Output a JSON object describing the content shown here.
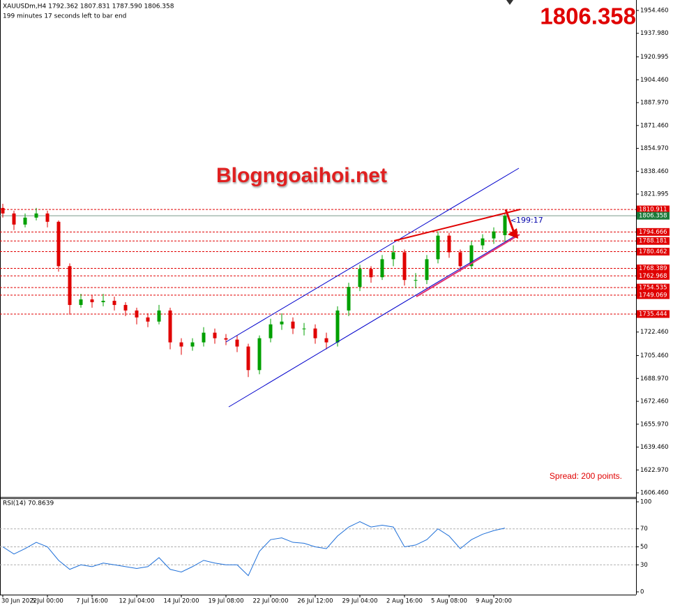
{
  "chart_data": [
    {
      "type": "candlestick",
      "title": "XAUUSDm,H4  1792.362 1807.831 1787.590 1806.358",
      "subtitle": "199 minutes 17 seconds left to bar end",
      "categories": [
        "30 Jun 2022",
        null,
        null,
        null,
        "5 Jul 00:00",
        null,
        null,
        null,
        "7 Jul 16:00",
        null,
        null,
        null,
        "12 Jul 04:00",
        null,
        null,
        null,
        "14 Jul 20:00",
        null,
        null,
        null,
        "19 Jul 08:00",
        null,
        null,
        null,
        "22 Jul 00:00",
        null,
        null,
        null,
        "26 Jul 12:00",
        null,
        null,
        null,
        "29 Jul 04:00",
        null,
        null,
        null,
        "2 Aug 16:00",
        null,
        null,
        null,
        "5 Aug 08:00",
        null,
        null,
        null,
        "9 Aug 20:00",
        null
      ],
      "open": [
        1812,
        1808,
        1800,
        1805,
        1808,
        1802,
        1770,
        1742,
        1746,
        1744,
        1745,
        1742,
        1738,
        1733,
        1730,
        1738,
        1715,
        1712,
        1715,
        1722,
        1718,
        1717,
        1712,
        1695,
        1718,
        1728,
        1730,
        1725,
        1725,
        1718,
        1715,
        1738,
        1755,
        1768,
        1762,
        1775,
        1780,
        1760,
        1760,
        1775,
        1792,
        1780,
        1770,
        1785,
        1790,
        1792.362
      ],
      "high": [
        1815,
        1810,
        1808,
        1812,
        1810,
        1803,
        1772,
        1750,
        1749,
        1750,
        1748,
        1744,
        1740,
        1736,
        1742,
        1740,
        1718,
        1718,
        1726,
        1725,
        1721,
        1720,
        1714,
        1720,
        1732,
        1736,
        1733,
        1729,
        1728,
        1722,
        1741,
        1758,
        1771,
        1770,
        1778,
        1785,
        1782,
        1765,
        1778,
        1795,
        1794,
        1782,
        1788,
        1793,
        1798,
        1807.831
      ],
      "low": [
        1805,
        1796,
        1798,
        1803,
        1798,
        1766,
        1735,
        1740,
        1740,
        1741,
        1738,
        1734,
        1728,
        1726,
        1728,
        1710,
        1706,
        1709,
        1712,
        1714,
        1713,
        1708,
        1690,
        1692,
        1715,
        1724,
        1721,
        1720,
        1714,
        1710,
        1712,
        1734,
        1752,
        1758,
        1760,
        1770,
        1756,
        1754,
        1757,
        1772,
        1776,
        1766,
        1768,
        1782,
        1786,
        1787.59
      ],
      "close": [
        1808,
        1800,
        1805,
        1808,
        1802,
        1770,
        1742,
        1746,
        1744,
        1745,
        1742,
        1738,
        1733,
        1730,
        1738,
        1715,
        1712,
        1715,
        1722,
        1718,
        1717,
        1712,
        1695,
        1718,
        1728,
        1730,
        1725,
        1725,
        1718,
        1715,
        1738,
        1755,
        1768,
        1762,
        1775,
        1780,
        1760,
        1760,
        1775,
        1792,
        1780,
        1770,
        1785,
        1790,
        1795,
        1806.358
      ],
      "up_color": "#00a000",
      "down_color": "#e00000",
      "ylim": [
        1603.5,
        1962
      ],
      "yticks": [
        {
          "value": 1954.46,
          "label": "1954.460"
        },
        {
          "value": 1937.98,
          "label": "1937.980"
        },
        1920.995,
        {
          "value": 1904.46,
          "label": "1904.460"
        },
        {
          "value": 1887.97,
          "label": "1887.970"
        },
        {
          "value": 1871.46,
          "label": "1871.460"
        },
        {
          "value": 1854.97,
          "label": "1854.970"
        },
        {
          "value": 1838.46,
          "label": "1838.460"
        },
        1821.995,
        {
          "value": 1722.46,
          "label": "1722.460"
        },
        {
          "value": 1705.46,
          "label": "1705.460"
        },
        {
          "value": 1688.97,
          "label": "1688.970"
        },
        {
          "value": 1672.46,
          "label": "1672.460"
        },
        {
          "value": 1655.97,
          "label": "1655.970"
        },
        {
          "value": 1639.46,
          "label": "1639.460"
        },
        {
          "value": 1622.97,
          "label": "1622.970"
        },
        {
          "value": 1606.46,
          "label": "1606.460"
        }
      ],
      "levels": [
        1810.911,
        1794.666,
        1788.181,
        1780.462,
        1768.389,
        1762.968,
        1754.535,
        1749.069,
        1735.444
      ],
      "level_color": "#e00000",
      "price_color": "#1a7a3a",
      "watermark": "Blogngoaihoi.net",
      "spread": "Spread: 200 points.",
      "countdown": "199:17"
    },
    {
      "type": "line",
      "title": "RSI(14) 70.8639",
      "values": [
        50,
        42,
        48,
        55,
        50,
        35,
        25,
        30,
        28,
        32,
        30,
        28,
        26,
        28,
        38,
        25,
        22,
        28,
        35,
        32,
        30,
        30,
        18,
        45,
        58,
        60,
        55,
        54,
        50,
        48,
        62,
        72,
        78,
        72,
        74,
        72,
        50,
        52,
        58,
        70,
        62,
        48,
        58,
        64,
        68,
        70.8639
      ],
      "color": "#1e6fd8",
      "ylim": [
        0,
        100
      ],
      "yticks": [
        100,
        70,
        50,
        30,
        0
      ],
      "grid": true
    }
  ]
}
